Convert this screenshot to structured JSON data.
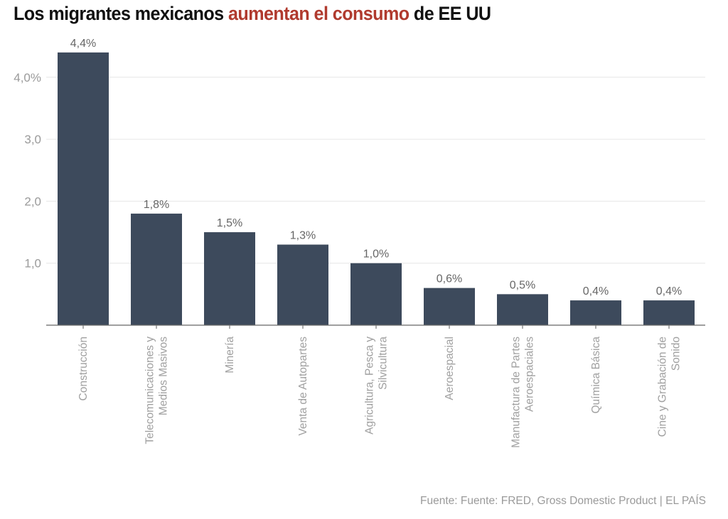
{
  "title": {
    "part1": "Los migrantes mexicanos ",
    "highlight": "aumentan el consumo",
    "part2": " de EE UU",
    "highlight_color": "#b03a2e"
  },
  "source": "Fuente: Fuente: FRED, Gross Domestic Product | EL PAÍS",
  "chart_data": {
    "type": "bar",
    "title": "Los migrantes mexicanos aumentan el consumo de EE UU",
    "xlabel": "",
    "ylabel": "",
    "categories": [
      [
        "Construcción"
      ],
      [
        "Telecomunicaciones y",
        "Medios Masivos"
      ],
      [
        "Minería"
      ],
      [
        "Venta de Autopartes"
      ],
      [
        "Agricultura, Pesca y",
        "Silvicultura"
      ],
      [
        "Aeroespacial"
      ],
      [
        "Manufactura de Partes",
        "Aeroespaciales"
      ],
      [
        "Química Básica"
      ],
      [
        "Cine y Grabación de",
        "Sonido"
      ]
    ],
    "values": [
      4.4,
      1.8,
      1.5,
      1.3,
      1.0,
      0.6,
      0.5,
      0.4,
      0.4
    ],
    "data_labels": [
      "4,4%",
      "1,8%",
      "1,5%",
      "1,3%",
      "1,0%",
      "0,6%",
      "0,5%",
      "0,4%",
      "0,4%"
    ],
    "ylim": [
      0,
      4.4
    ],
    "yticks": [
      1.0,
      2.0,
      3.0,
      4.0
    ],
    "ytick_labels": [
      "1,0",
      "2,0",
      "3,0",
      "4,0%"
    ],
    "grid": true,
    "legend": "none",
    "bar_color": "#3d4a5c"
  }
}
